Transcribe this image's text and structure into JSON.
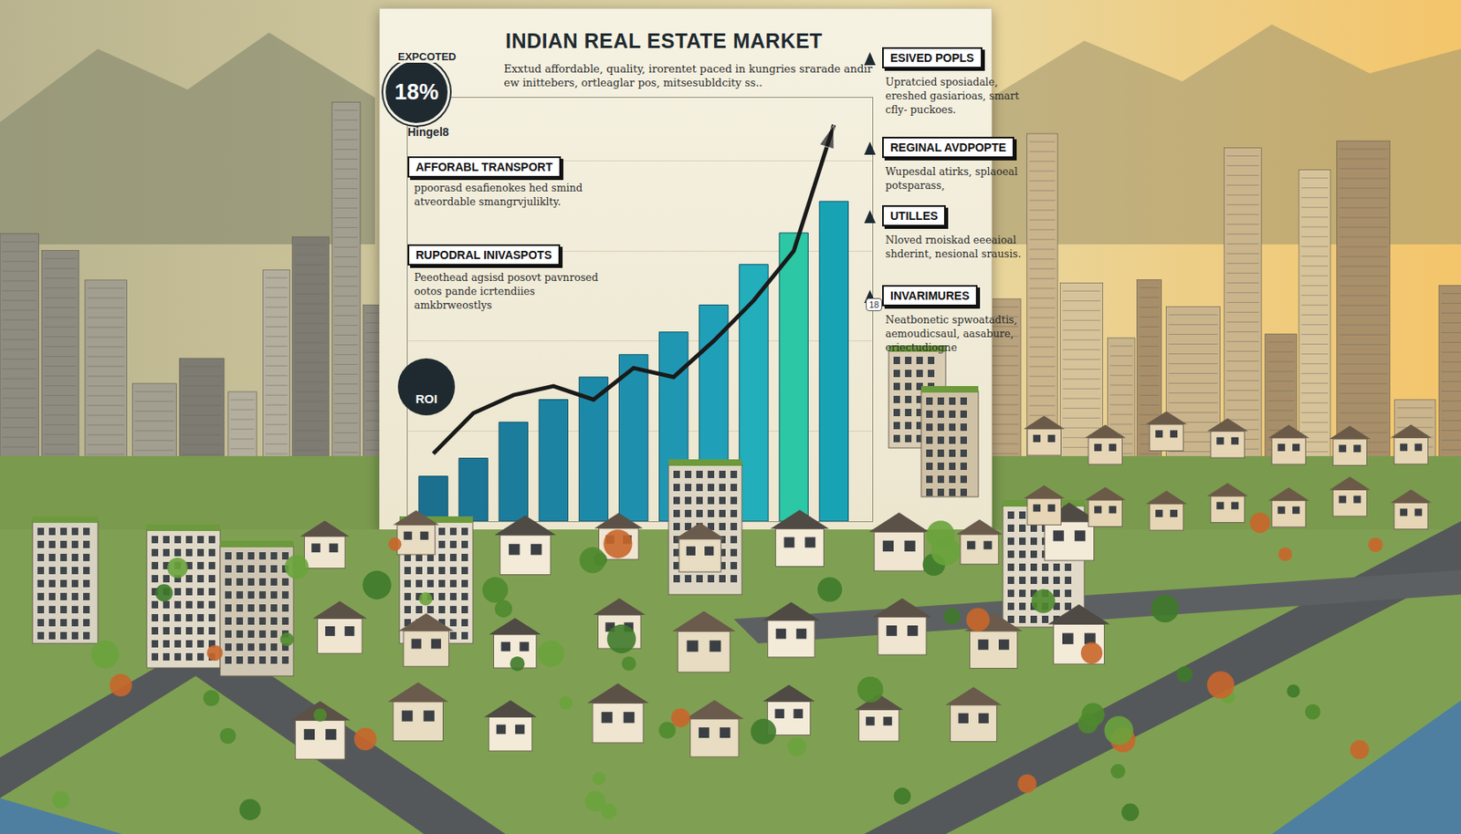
{
  "header": {
    "title": "INDIAN REAL ESTATE MARKET",
    "badge_label": "EXPCOTED",
    "badge_value": "18%",
    "badge_caption": "Hingel8",
    "text": "Exxtud affordable, quality, irorentet paced in kungries srarade andir ew inittebers, ortleaglar pos, mitsesubldcity ss.."
  },
  "left_sections": [
    {
      "title": "AFFORABL TRANSPORT",
      "text": "ppoorasd esafienokes hed smind atveordable smangrvjuliklty."
    },
    {
      "title": "RUPODRAL INIVASPOTS",
      "text": "Peeothead agsisd posovt pavnrosed ootos pande icrtendiies amkbrweostlys"
    }
  ],
  "roi_label": "ROI",
  "chart_tag": "18",
  "right_sections": [
    {
      "title": "ESIVED POPLS",
      "text": "Upratcied sposiadale, ereshed gasiarioas, smart cfly- puckoes."
    },
    {
      "title": "REGINAL AVDPOPTE",
      "text": "Wupesdal atirks, splaoeal potsparass,"
    },
    {
      "title": "UTILLES",
      "text": "Nloved rnoiskad eeeaioal shderint, nesional srausis."
    },
    {
      "title": "INVARIMURES",
      "text": "Neatbonetic spwoatadtis, aemoudicsaul, aasabure, eriectudiogne"
    }
  ],
  "chart_data": {
    "type": "bar",
    "categories": [
      null,
      null,
      null,
      null,
      null,
      null,
      null,
      null,
      null,
      null,
      null
    ],
    "series": [
      {
        "type": "bar",
        "colors": [
          "#1b6f8f",
          "#1b7595",
          "#1c7c9c",
          "#1c83a2",
          "#1d89a8",
          "#1e90ae",
          "#1f97b3",
          "#20a0b8",
          "#23aebb",
          "#2cc7a4",
          "#18a3b5"
        ],
        "values": [
          50,
          70,
          110,
          135,
          160,
          185,
          210,
          240,
          285,
          320,
          355
        ]
      },
      {
        "type": "line",
        "color": "#1a1a1a",
        "marker": "arrow",
        "values": [
          75,
          120,
          140,
          150,
          135,
          170,
          160,
          200,
          245,
          300,
          440
        ]
      }
    ],
    "ylim": [
      0,
      470
    ],
    "yticks": [
      0,
      100,
      200,
      300,
      400
    ],
    "grid": true,
    "tick_labels": false
  }
}
